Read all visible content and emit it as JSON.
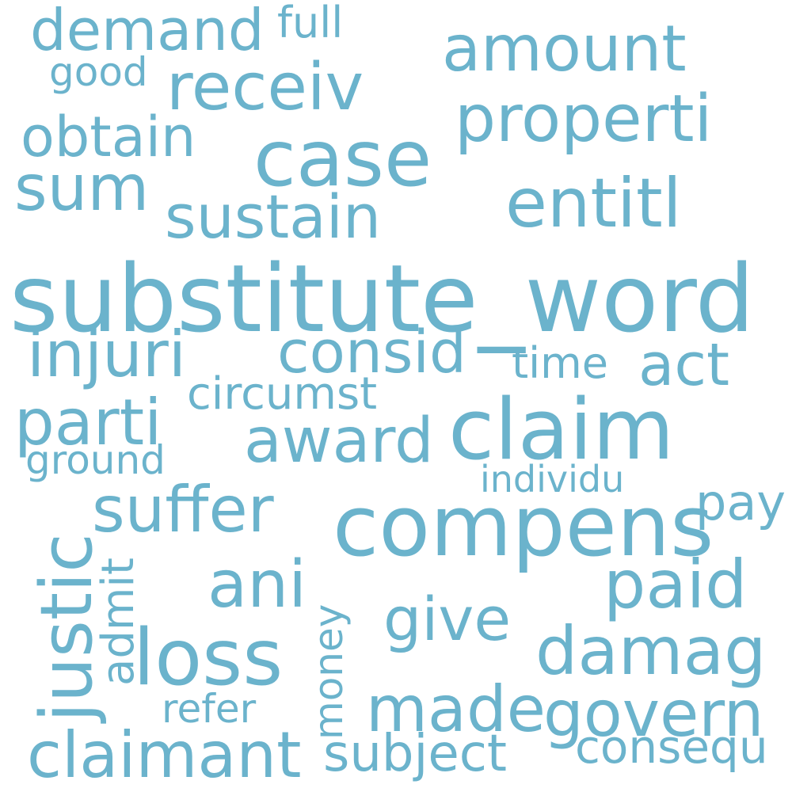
{
  "color": "#6bb3cc",
  "words": {
    "substitute_word": "substitute_word",
    "compens": "compens",
    "claim": "claim",
    "case": "case",
    "loss": "loss",
    "properti": "properti",
    "amount": "amount",
    "receiv": "receiv",
    "entitl": "entitl",
    "sustain": "sustain",
    "demand": "demand",
    "obtain": "obtain",
    "sum": "sum",
    "injuri": "injuri",
    "consid": "consid",
    "act": "act",
    "award": "award",
    "parti": "parti",
    "suffer": "suffer",
    "paid": "paid",
    "ani": "ani",
    "damag": "damag",
    "govern": "govern",
    "made": "made",
    "claimant": "claimant",
    "justic": "justic",
    "give": "give",
    "circumst": "circumst",
    "time": "time",
    "pay": "pay",
    "admit": "admit",
    "money": "money",
    "subject": "subject",
    "consequ": "consequ",
    "refer": "refer",
    "individu": "individu",
    "ground": "ground",
    "good": "good",
    "full": "full"
  }
}
